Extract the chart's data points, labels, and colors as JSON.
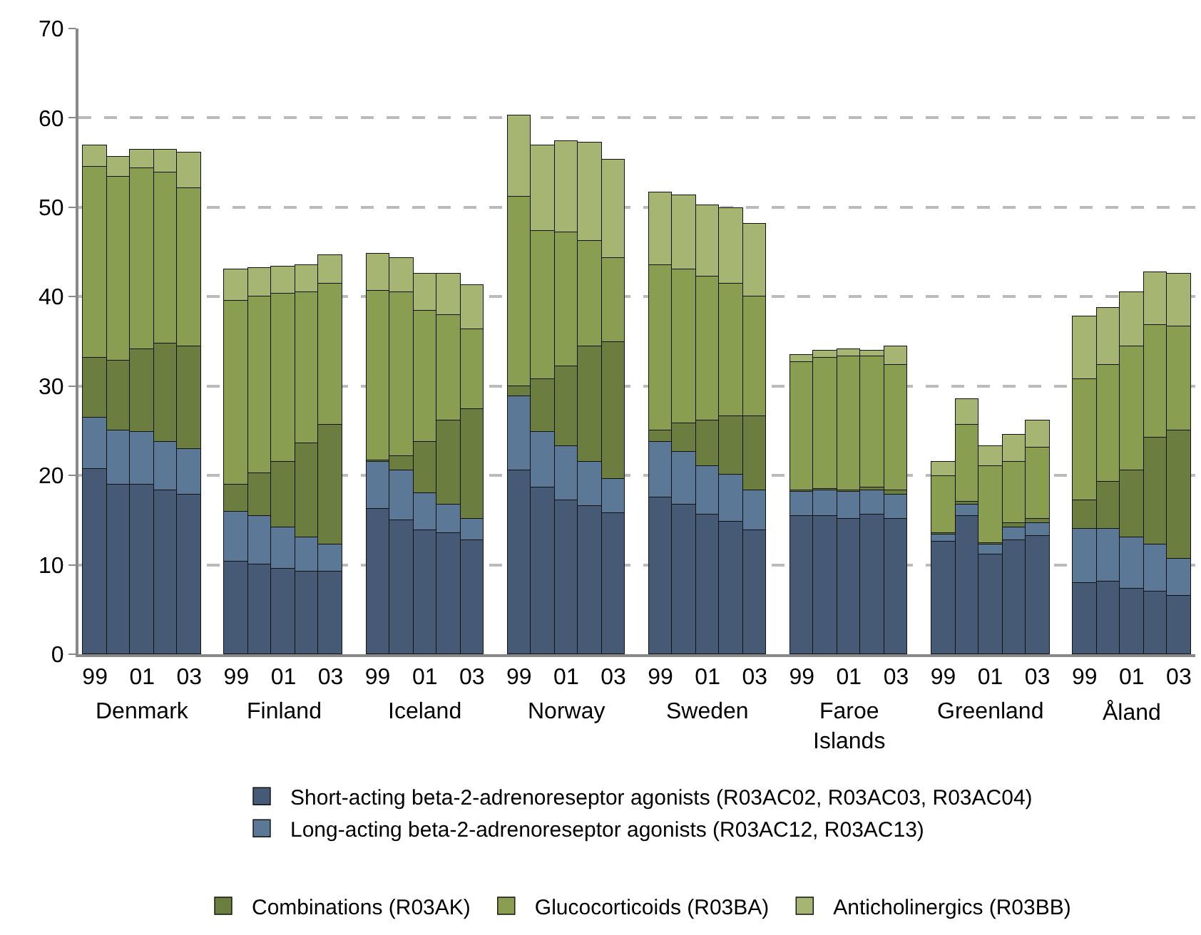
{
  "chart_data": {
    "type": "bar",
    "stacked": true,
    "grid": "y",
    "legend": "bottom",
    "categories": [
      "99",
      null,
      "01",
      null,
      "03",
      "99",
      null,
      "01",
      null,
      "03",
      "99",
      null,
      "01",
      null,
      "03",
      "99",
      null,
      "01",
      null,
      "03",
      "99",
      null,
      "01",
      null,
      "03",
      "99",
      null,
      "01",
      null,
      "03",
      "99",
      null,
      "01",
      null,
      "03",
      "99",
      null,
      "01",
      null,
      "03"
    ],
    "annotations": [
      "Denmark",
      "Finland",
      "Iceland",
      "Norway",
      "Sweden",
      "Faroe Islands",
      "Greenland",
      "Åland"
    ],
    "ylim": [
      0,
      70
    ],
    "yticks": [
      0,
      10,
      20,
      30,
      40,
      50,
      60,
      70
    ],
    "series": [
      {
        "name": "Short-acting beta-2-adrenoreseptor agonists (R03AC02, R03AC03, R03AC04)",
        "color": "#465a75",
        "values": [
          20.7,
          19.0,
          18.9,
          18.3,
          17.8,
          10.3,
          10.1,
          9.5,
          9.2,
          9.2,
          16.2,
          15.0,
          13.9,
          13.6,
          12.7,
          20.5,
          18.6,
          17.2,
          16.6,
          15.8,
          17.5,
          16.8,
          15.7,
          14.9,
          13.8,
          15.4,
          15.4,
          15.1,
          15.6,
          15.2,
          12.6,
          15.4,
          11.2,
          12.8,
          13.2,
          8.0,
          8.2,
          7.3,
          7.0,
          6.5
        ]
      },
      {
        "name": "Long-acting beta-2-adrenoreseptor agonists (R03AC12, R03AC13)",
        "color": "#5b7897",
        "values": [
          5.8,
          6.0,
          5.9,
          5.5,
          5.2,
          5.7,
          5.3,
          4.7,
          3.8,
          3.1,
          5.3,
          5.6,
          4.1,
          3.1,
          2.4,
          8.3,
          6.3,
          6.1,
          5.0,
          3.8,
          6.3,
          5.8,
          5.3,
          5.2,
          4.6,
          2.7,
          2.9,
          3.1,
          2.8,
          2.7,
          0.8,
          1.4,
          1.1,
          1.4,
          1.5,
          6.1,
          5.9,
          5.7,
          5.2,
          4.2
        ]
      },
      {
        "name": "Combinations (R03AK)",
        "color": "#6c7d40",
        "values": [
          6.6,
          7.8,
          9.4,
          11.0,
          11.4,
          2.9,
          4.8,
          7.3,
          10.6,
          13.3,
          0.2,
          1.5,
          5.7,
          9.5,
          12.3,
          1.1,
          5.8,
          8.9,
          12.8,
          15.3,
          1.3,
          3.2,
          5.1,
          6.6,
          8.2,
          0.2,
          0.2,
          0.2,
          0.3,
          0.4,
          0.2,
          0.2,
          0.2,
          0.5,
          0.5,
          3.2,
          5.2,
          7.6,
          12.0,
          14.3
        ]
      },
      {
        "name": "Glucocorticoids (R03BA)",
        "color": "#8a9e52",
        "values": [
          21.4,
          20.6,
          20.1,
          19.1,
          17.8,
          20.7,
          19.8,
          18.8,
          16.9,
          15.8,
          19.0,
          18.4,
          14.7,
          11.8,
          8.9,
          21.3,
          16.6,
          15.0,
          11.9,
          9.4,
          18.4,
          17.3,
          16.1,
          14.8,
          13.5,
          14.4,
          14.6,
          15.0,
          14.6,
          14.1,
          6.4,
          8.7,
          8.5,
          6.8,
          7.9,
          13.4,
          13.1,
          13.9,
          12.7,
          11.7
        ]
      },
      {
        "name": "Anticholinergics (R03BB)",
        "color": "#a7b573",
        "values": [
          2.5,
          2.2,
          2.2,
          2.5,
          4.0,
          3.4,
          3.2,
          3.1,
          3.0,
          3.3,
          4.1,
          3.9,
          4.2,
          4.5,
          5.0,
          9.1,
          9.6,
          10.2,
          10.9,
          11.0,
          8.1,
          8.2,
          8.1,
          8.4,
          8.0,
          0.8,
          0.8,
          0.8,
          0.6,
          2.0,
          1.5,
          2.8,
          2.3,
          3.0,
          3.0,
          7.1,
          6.4,
          6.0,
          5.8,
          5.9
        ]
      }
    ]
  }
}
